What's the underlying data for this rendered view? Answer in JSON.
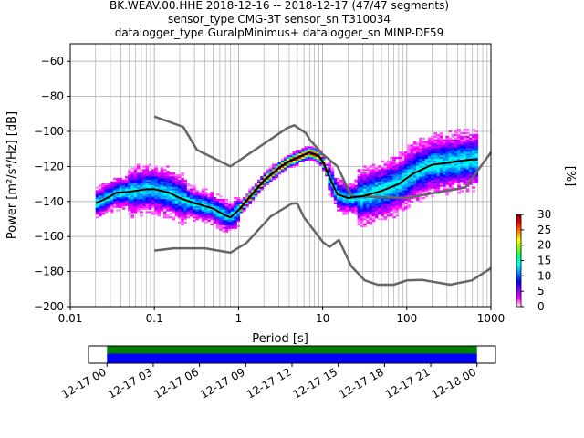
{
  "chart_data": [
    {
      "type": "heatmap",
      "title_lines": [
        "BK.WEAV.00.HHE   2018-12-16 -- 2018-12-17  (47/47 segments)",
        "sensor_type CMG-3T sensor_sn T310034",
        "datalogger_type GuralpMinimus+ datalogger_sn MINP-DF59"
      ],
      "xlabel": "Period [s]",
      "ylabel": "Power [m²/s⁴/Hz] [dB]",
      "x_scale": "log",
      "xlim": [
        0.01,
        1000
      ],
      "ylim": [
        -200,
        -50
      ],
      "xticks": [
        {
          "value": 0.01,
          "label": "0.01"
        },
        {
          "value": 0.1,
          "label": "0.1"
        },
        {
          "value": 1,
          "label": "1"
        },
        {
          "value": 10,
          "label": "10"
        },
        {
          "value": 100,
          "label": "100"
        },
        {
          "value": 1000,
          "label": "1000"
        }
      ],
      "yticks": [
        -200,
        -180,
        -160,
        -140,
        -120,
        -100,
        -80,
        -60
      ],
      "grid": true,
      "colorbar": {
        "label": "[%]",
        "min": 0,
        "max": 30,
        "ticks": [
          0,
          5,
          10,
          15,
          20,
          25,
          30
        ],
        "colors": [
          "#ffffff",
          "#ff00ff",
          "#8000ff",
          "#0000ff",
          "#0080ff",
          "#00ffff",
          "#00ff80",
          "#80ff00",
          "#ffff00",
          "#ff8000",
          "#ff0000",
          "#800000"
        ]
      },
      "series": [
        {
          "name": "High noise model",
          "color": "#666666",
          "points": [
            [
              0.1,
              -91.5
            ],
            [
              0.22,
              -97.4
            ],
            [
              0.32,
              -110.5
            ],
            [
              0.8,
              -120
            ],
            [
              3.8,
              -98
            ],
            [
              4.6,
              -96.5
            ],
            [
              6.3,
              -101
            ],
            [
              7.1,
              -105
            ],
            [
              10,
              -113
            ],
            [
              15,
              -120
            ],
            [
              22,
              -137
            ],
            [
              100,
              -138
            ],
            [
              500,
              -132
            ],
            [
              1000,
              -112
            ]
          ]
        },
        {
          "name": "Low noise model",
          "color": "#666666",
          "points": [
            [
              0.1,
              -168
            ],
            [
              0.17,
              -166.7
            ],
            [
              0.4,
              -166.7
            ],
            [
              0.8,
              -169.2
            ],
            [
              1.24,
              -163.7
            ],
            [
              2.4,
              -148.6
            ],
            [
              4.3,
              -141.2
            ],
            [
              5,
              -141.1
            ],
            [
              6,
              -149
            ],
            [
              10,
              -163
            ],
            [
              12,
              -166
            ],
            [
              15.6,
              -162
            ],
            [
              21.9,
              -177
            ],
            [
              31.6,
              -185
            ],
            [
              45,
              -187.5
            ],
            [
              70,
              -187.5
            ],
            [
              101,
              -185
            ],
            [
              154,
              -184.8
            ],
            [
              328,
              -187.5
            ],
            [
              600,
              -185
            ],
            [
              1000,
              -178
            ]
          ]
        },
        {
          "name": "Mean",
          "color": "#000000",
          "points": [
            [
              0.02,
              -141
            ],
            [
              0.025,
              -139
            ],
            [
              0.03,
              -137
            ],
            [
              0.035,
              -135
            ],
            [
              0.05,
              -134.5
            ],
            [
              0.08,
              -133
            ],
            [
              0.1,
              -133
            ],
            [
              0.15,
              -135
            ],
            [
              0.2,
              -138
            ],
            [
              0.3,
              -141
            ],
            [
              0.5,
              -144
            ],
            [
              0.7,
              -148
            ],
            [
              0.8,
              -149
            ],
            [
              1,
              -145
            ],
            [
              1.5,
              -135
            ],
            [
              2,
              -128
            ],
            [
              3,
              -121
            ],
            [
              4,
              -117
            ],
            [
              5,
              -115
            ],
            [
              7,
              -112
            ],
            [
              9,
              -114
            ],
            [
              10,
              -117
            ],
            [
              12,
              -126
            ],
            [
              15,
              -136
            ],
            [
              20,
              -138
            ],
            [
              30,
              -137
            ],
            [
              50,
              -134
            ],
            [
              80,
              -130
            ],
            [
              120,
              -124
            ],
            [
              200,
              -119
            ],
            [
              300,
              -118
            ],
            [
              400,
              -117
            ],
            [
              600,
              -116
            ],
            [
              700,
              -116
            ]
          ]
        }
      ],
      "time_axis": {
        "ticks": [
          "12-17 00",
          "12-17 03",
          "12-17 06",
          "12-17 09",
          "12-17 12",
          "12-17 15",
          "12-17 18",
          "12-17 21",
          "12-18 00"
        ],
        "tick_hours": [
          0,
          3,
          6,
          9,
          12,
          15,
          18,
          21,
          24
        ],
        "range_hours": [
          -1.2,
          25.2
        ],
        "coverage": [
          {
            "label": "data",
            "color": "#008000",
            "start_hour": 0,
            "end_hour": 24
          },
          {
            "label": "gaps",
            "color": "#0000ff",
            "start_hour": 0,
            "end_hour": 24
          }
        ]
      }
    }
  ]
}
